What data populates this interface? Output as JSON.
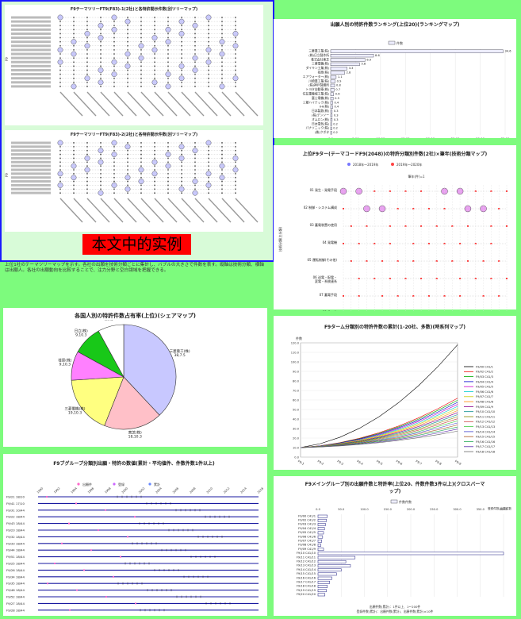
{
  "panels": {
    "tl_top_title": "F9テーマツリーFT9(F83)-1(2社)と各特許開示件数(別ツリーマップ)",
    "tl_bottom_title": "F9テーマツリーFT9(F83)-2(2社)と各特許開示件数(別ツリーマップ)",
    "caption_overlay": "本文中的实例",
    "notes_text": "上位1社のテーマツリーマップを示す。各社の出願を技術分類ごとに集計し、バブルの大きさで件数を表す。縦軸は技術分類、横軸は出願人。各社の出願動向を比較することで、注力分野と空白領域を把握できる。",
    "pie_title": "各国人別の特許件数占有率(上位)(シェアマップ)",
    "tr_title": "出願人別の特許件数ランキング(上位20)(ランキングマップ)",
    "mr_title": "上位F9ター(テーマコードF9(2048))の特許分類別件数(2社)×筆年(技術分類マップ)",
    "lr_title": "F9ターム分類別の特許件数の累計(1-20社、多数)(時系列マップ)",
    "bl_title": "F9ブグループ分類別出願・特許の数値(累計・平均値件、件数件数1件以上)",
    "br_title": "F9メイングループ別の出願件数と特許率(上位20、件数件数3件以上)(クロスバーマップ)"
  },
  "pie": {
    "labels": [
      "三菱重工(株)\n38,7.5",
      "東芝(株)\n18,10.3",
      "三菱電機(株)\n19,10.3",
      "荏原(株)\n9,10.3",
      "日立(株)\n9,10.3",
      "その他\n0,0.3"
    ],
    "values": [
      38,
      18,
      18,
      9,
      9,
      8
    ],
    "colors": [
      "#c8c8ff",
      "#ffc0c8",
      "#ffff80",
      "#ff80ff",
      "#18c818",
      "#ffffff"
    ]
  },
  "ranking": {
    "legend": "件数",
    "rows": [
      {
        "name": "三菱重工業(株)",
        "value": 34.6
      },
      {
        "name": "(株)日立製作所",
        "value": 8.6
      },
      {
        "name": "株式会社東芝",
        "value": 6.9
      },
      {
        "name": "三菱電機(株)",
        "value": 5.8
      },
      {
        "name": "ダイキン工業(株)",
        "value": 3.3
      },
      {
        "name": "荏原(株)",
        "value": 2.8
      },
      {
        "name": "エアウォーター(株)",
        "value": 1.1
      },
      {
        "name": "川崎重工業(株)",
        "value": 0.9
      },
      {
        "name": "(株)神戸製鋼所",
        "value": 0.8
      },
      {
        "name": "トヨタ自動車(株)",
        "value": 0.7
      },
      {
        "name": "住友重機械工業(株)",
        "value": 0.6
      },
      {
        "name": "富士電機(株)",
        "value": 0.5
      },
      {
        "name": "三菱ハイテック(株)",
        "value": 0.4
      },
      {
        "name": "IHI(株)",
        "value": 0.4
      },
      {
        "name": "日本製鉄(株)",
        "value": 0.3
      },
      {
        "name": "(株)デンソー",
        "value": 0.3
      },
      {
        "name": "オムロン(株)",
        "value": 0.3
      },
      {
        "name": "日本電気(株)",
        "value": 0.2
      },
      {
        "name": "パナソニック(株)",
        "value": 0.2
      },
      {
        "name": "(株)クボタ",
        "value": 0.2
      }
    ],
    "xticks": [
      "0.0",
      "5.00",
      "10.00",
      "15.00",
      "20.00",
      "25.00",
      "30.00",
      "35.00"
    ]
  },
  "bubble": {
    "legend": [
      "2018年〜2019年",
      "2019年〜2020年"
    ],
    "axis_top": "筆年(件)=1",
    "rows": [
      "01 発生・発電手段",
      "02 制御・システム構成",
      "03 蓄電装置の使用",
      "04 発電機",
      "05 運転制御(その他)",
      "06 送電・配電・\n変電・系統連系",
      "07 蓄電手段",
      "08 その他"
    ],
    "ylabel": "技術分類(主分類)"
  },
  "timeseries": {
    "ylabel": "件数",
    "xticks": [
      "F9-1",
      "F9-2",
      "F9-3",
      "F9-4",
      "F9-5",
      "F9-6",
      "F9-7",
      "F9-8",
      "F9-9"
    ],
    "yticks": [
      "0.0",
      "10.0",
      "20.0",
      "30.0",
      "40.0",
      "50.0",
      "60.0",
      "70.0",
      "80.0",
      "90.0",
      "100.0",
      "110.0",
      "120.0"
    ],
    "legend": [
      "F9/00 C41/1",
      "F9/02 C41/2",
      "F9/03 C41/3",
      "F9/04 C41/4",
      "F9/05 C41/5",
      "F9/06 C41/6",
      "F9/07 C41/7",
      "F9/08 C41/8",
      "F9/09 C41/9",
      "F9/10 C41/10",
      "F9/11 C41/11",
      "F9/12 C41/12",
      "F9/13 C41/13",
      "F9/14 C41/14",
      "F9/15 C41/15",
      "F9/16 C41/16",
      "F9/17 C41/17",
      "F9/18 C41/18"
    ]
  },
  "gantt": {
    "legend": [
      "出願件",
      "登録",
      "累計"
    ],
    "xticks": [
      "1990",
      "1992",
      "1994",
      "1996",
      "1998",
      "2000",
      "2002",
      "2004",
      "2006",
      "2008",
      "2010",
      "2012",
      "2014",
      "2016"
    ],
    "rows": [
      "F9/21 18/10",
      "F9/41 17/10",
      "F9/31 10/44",
      "F9/22 18/44",
      "F9/43 18/44",
      "F9/23 18/44",
      "F9/32 18/44",
      "F9/33 18/44",
      "F9/44 18/44",
      "F9/51 18/44",
      "F9/25 18/44",
      "F9/26 18/44",
      "F9/34 18/44",
      "F9/35 18/44",
      "F9/46 18/44",
      "F9/52 18/44",
      "F9/27 18/44",
      "F9/28 18/44"
    ]
  },
  "crossbar": {
    "legend": "件数件数",
    "right_label": "登録件数/出願件数",
    "rows": [
      "F9/00 C41/1",
      "F9/02 C41/2",
      "F9/03 C41/3",
      "F9/04 C41/4",
      "F9/05 C41/5",
      "F9/06 C41/6",
      "F9/07 C41/7",
      "F9/08 C41/8",
      "F9/09 C41/9",
      "F9/10 C41/10",
      "F9/11 C41/11",
      "F9/12 C41/12",
      "F9/13 C41/13",
      "F9/14 C41/14",
      "F9/15 C41/15",
      "F9/16 C41/16",
      "F9/17 C41/17",
      "F9/18 C41/18",
      "F9/19 C41/19",
      "F9/20 C41/20"
    ],
    "xticks": [
      "0.0",
      "50.0",
      "100.0",
      "150.0",
      "200.0",
      "250.0",
      "300.0",
      "350.0",
      "400.0"
    ],
    "footer1": "出願件数(累計)：1件以上、1〜200件",
    "footer2": "登録件数(累計)：出願件数(累計)、出願件数(累計)×10件"
  }
}
